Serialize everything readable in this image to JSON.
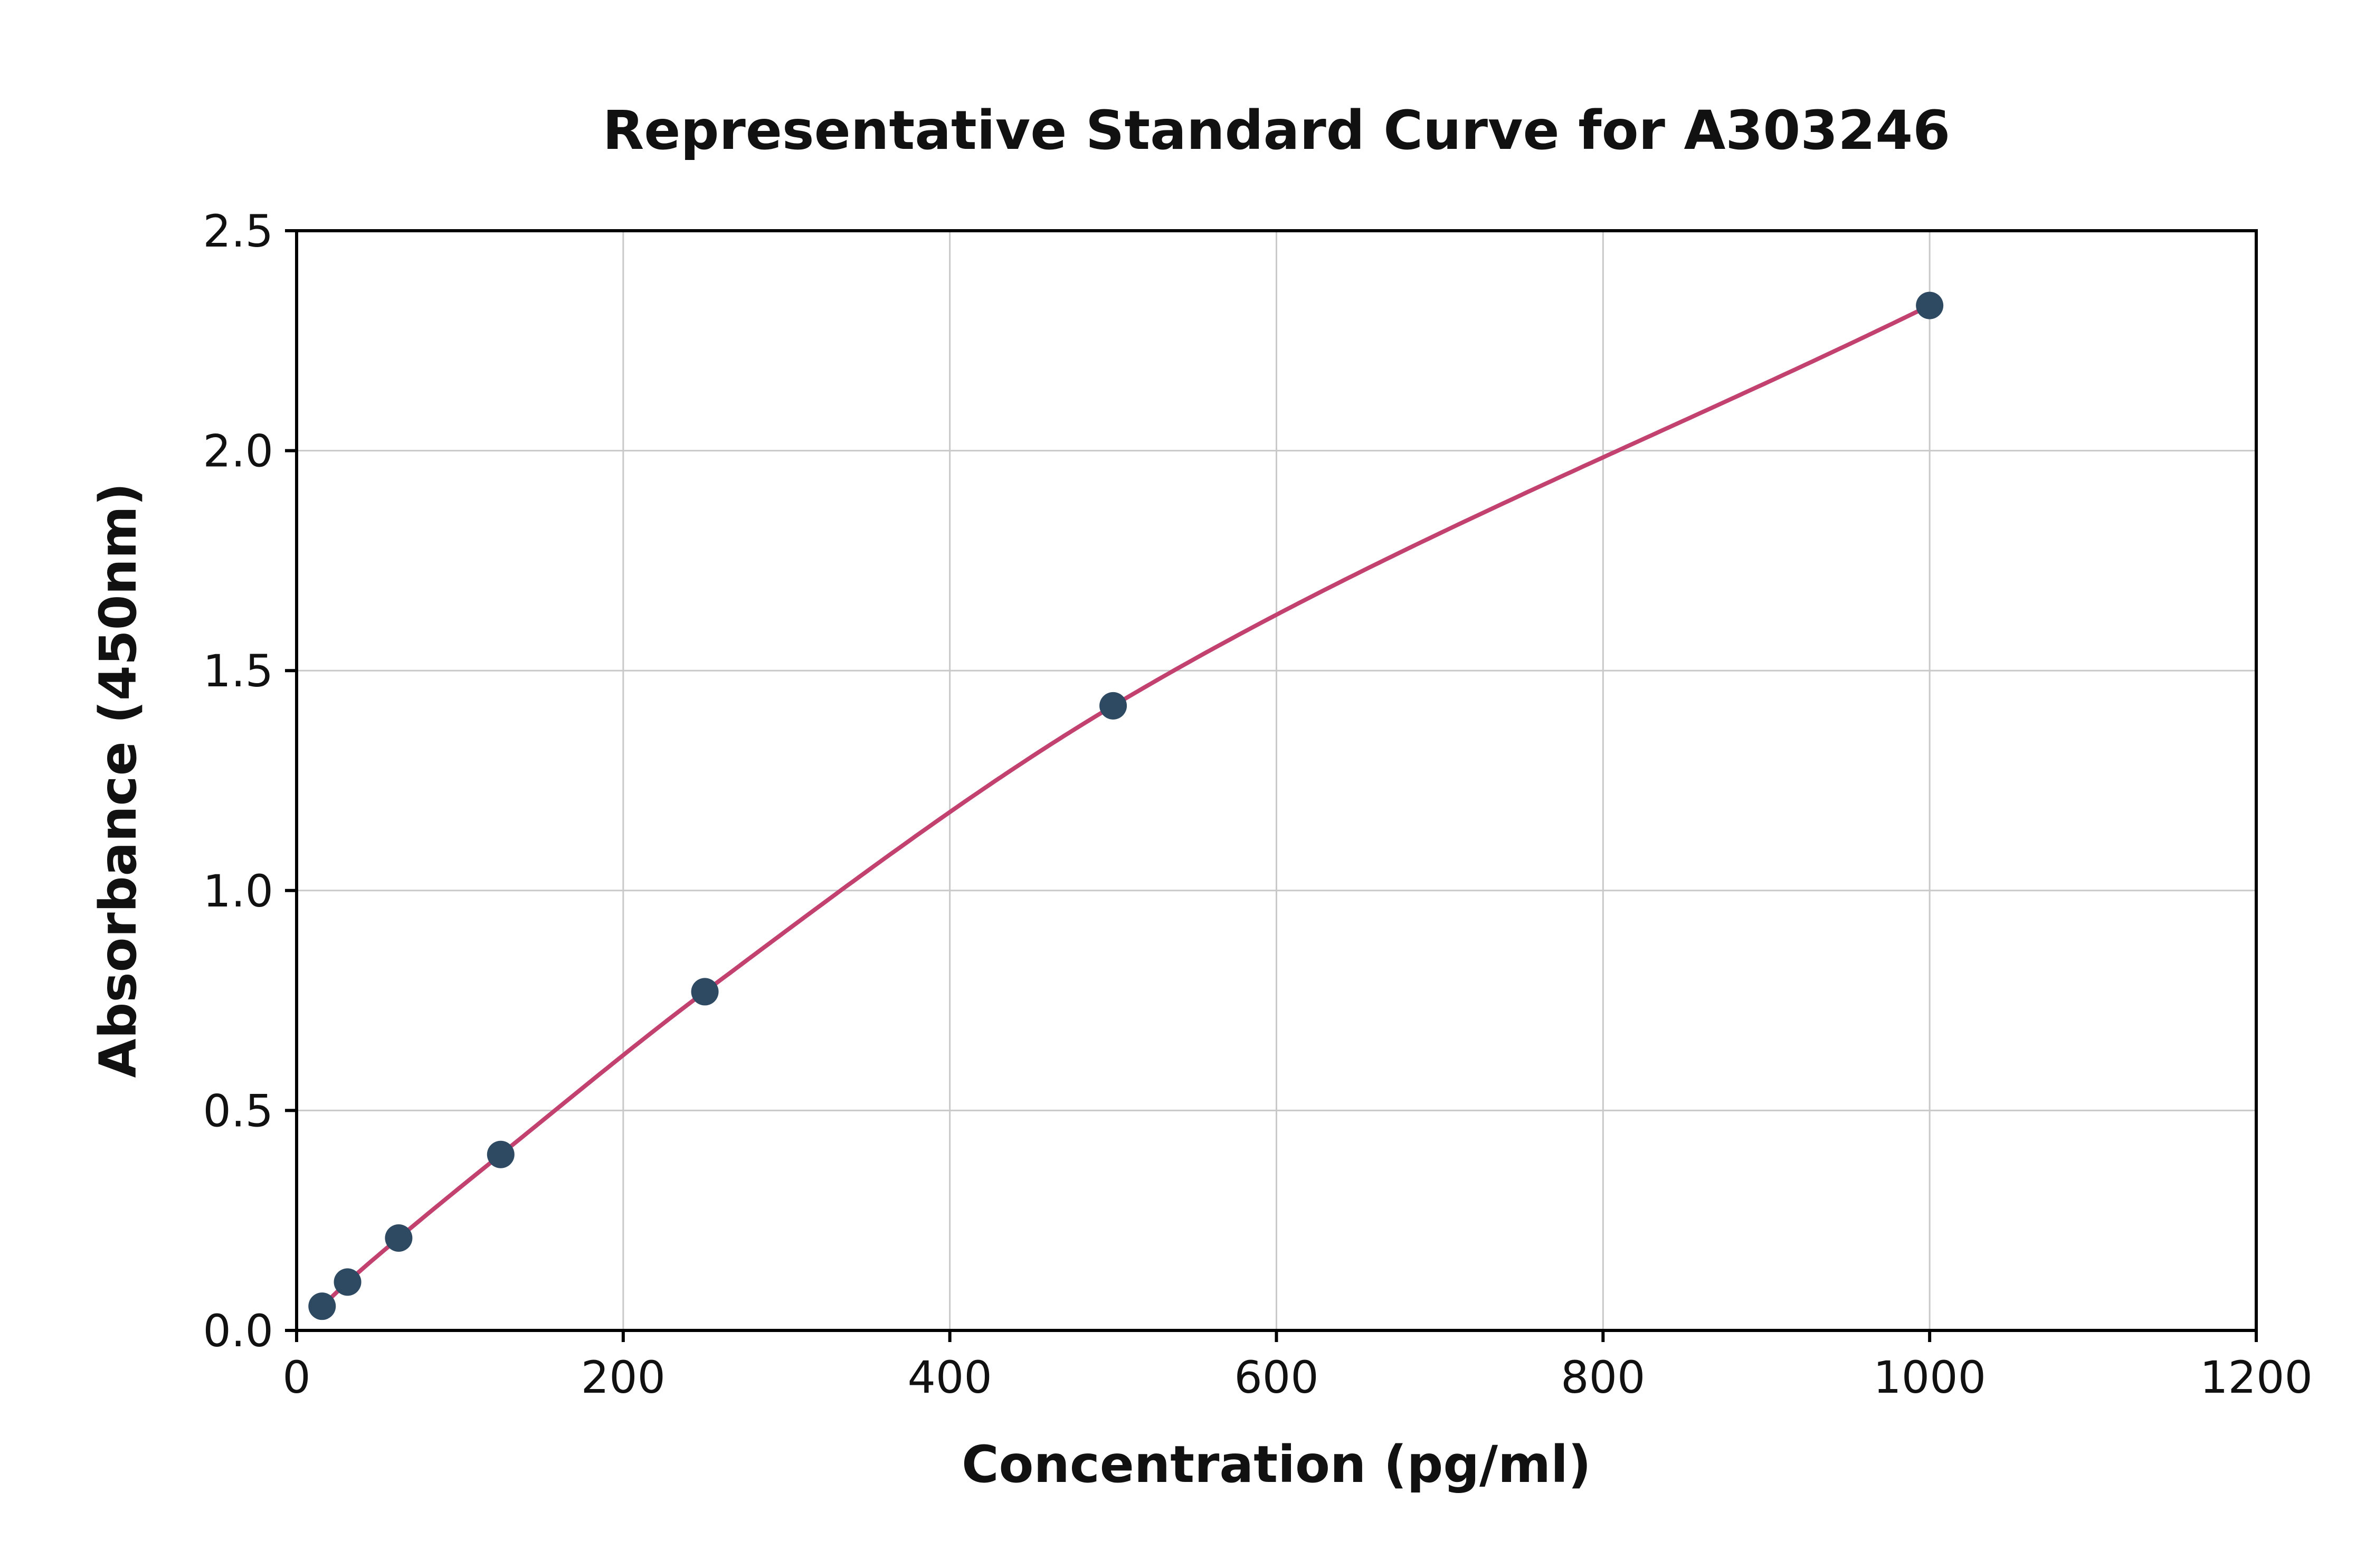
{
  "chart_data": {
    "type": "line",
    "title": "Representative Standard Curve for A303246",
    "xlabel": "Concentration (pg/ml)",
    "ylabel": "Absorbance (450nm)",
    "xlim": [
      0,
      1200
    ],
    "ylim": [
      0,
      2.5
    ],
    "xticks": [
      0,
      200,
      400,
      600,
      800,
      1000,
      1200
    ],
    "xtick_labels": [
      "0",
      "200",
      "400",
      "600",
      "800",
      "1000",
      "1200"
    ],
    "yticks": [
      0,
      0.5,
      1.0,
      1.5,
      2.0,
      2.5
    ],
    "ytick_labels": [
      "0.0",
      "0.5",
      "1.0",
      "1.5",
      "2.0",
      "2.5"
    ],
    "grid": true,
    "legend": "none",
    "series": [
      {
        "name": "standard-curve",
        "x": [
          15.6,
          31.2,
          62.5,
          125,
          250,
          500,
          1000
        ],
        "y": [
          0.055,
          0.11,
          0.21,
          0.4,
          0.77,
          1.42,
          2.33
        ]
      }
    ],
    "colors": {
      "curve": "#c2416e",
      "point": "#2e4a63",
      "grid": "#c9c9c9",
      "spine": "#000000",
      "text": "#111111"
    }
  }
}
